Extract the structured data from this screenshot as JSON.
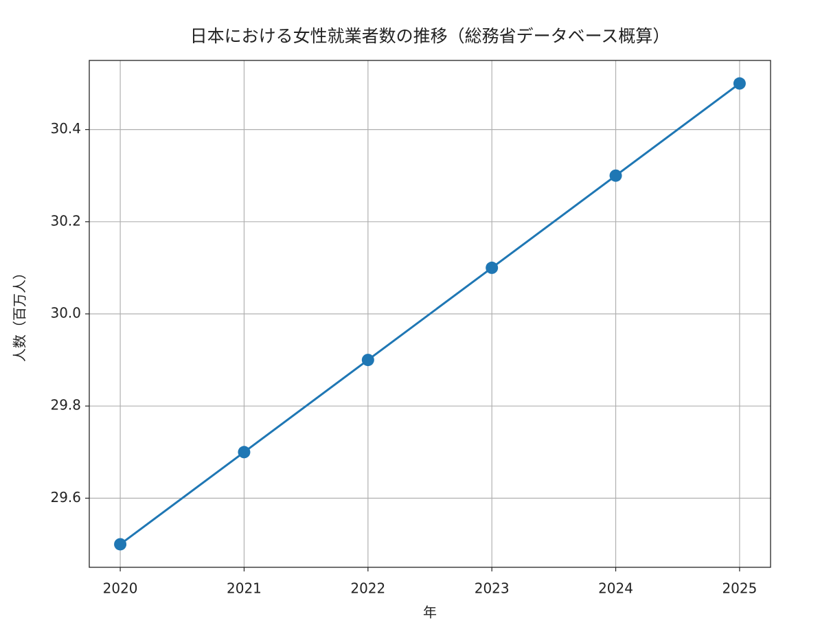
{
  "chart_data": {
    "type": "line",
    "title": "日本における女性就業者数の推移（総務省データベース概算）",
    "xlabel": "年",
    "ylabel": "人数（百万人）",
    "x": [
      2020,
      2021,
      2022,
      2023,
      2024,
      2025
    ],
    "values": [
      29.5,
      29.7,
      29.9,
      30.1,
      30.3,
      30.5
    ],
    "color": "#1f77b4",
    "xlim": [
      2019.75,
      2025.25
    ],
    "xticks": [
      2020,
      2021,
      2022,
      2023,
      2024,
      2025
    ],
    "ylim": [
      29.45,
      30.55
    ],
    "yticks": [
      29.6,
      29.8,
      {
        "value": 30,
        "label": "30.0"
      },
      30.2,
      30.4
    ],
    "grid": true
  }
}
